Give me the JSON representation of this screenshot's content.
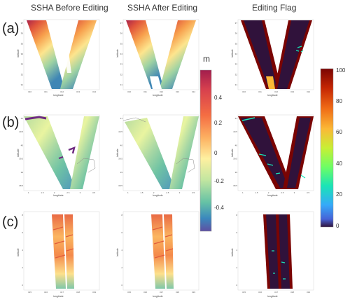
{
  "figure": {
    "column_titles": [
      "SSHA Before Editing",
      "SSHA After Editing",
      "Editing Flag"
    ],
    "row_labels": [
      "(a)",
      "(b)",
      "(c)"
    ],
    "axis_xlabel": "longitude",
    "axis_ylabel": "latitude",
    "rows": [
      {
        "x_ticks": [
          "310",
          "311",
          "312",
          "313",
          "314"
        ],
        "y_ticks": [
          "31",
          "32",
          "33",
          "34",
          "35",
          "36",
          "37"
        ]
      },
      {
        "x_ticks": [
          "1",
          "1.5",
          "2",
          "2.5",
          "3",
          "3.5"
        ],
        "y_ticks": [
          "38.5",
          "39",
          "39.5",
          "40",
          "40.5",
          "41"
        ]
      },
      {
        "x_ticks": [
          "315",
          "316",
          "317",
          "318",
          "319"
        ],
        "y_ticks": [
          "0",
          "2",
          "4",
          "6",
          "8"
        ]
      }
    ]
  },
  "colorbars": {
    "ssha": {
      "unit": "m",
      "ticks": [
        "0.4",
        "0.2",
        "0",
        "-0.2",
        "-0.4"
      ],
      "range": [
        -0.5,
        0.55
      ],
      "colormap": "spectral_r"
    },
    "flag": {
      "ticks": [
        "100",
        "80",
        "60",
        "40",
        "20",
        "0"
      ],
      "range": [
        0,
        100
      ],
      "colormap": "turbo"
    }
  }
}
